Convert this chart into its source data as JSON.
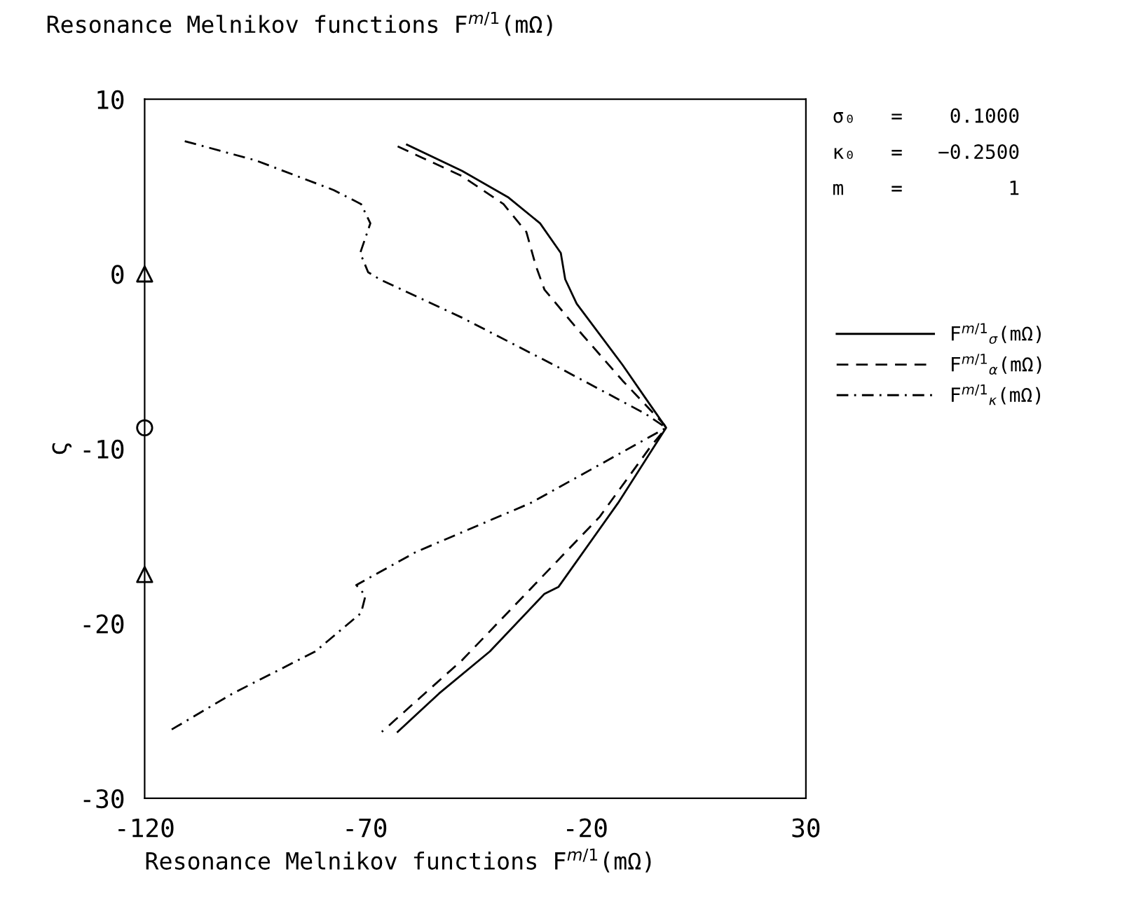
{
  "chart_data": {
    "type": "line",
    "title": "Resonance Melnikov functions F$^{m/1}$(mΩ)",
    "xlabel": "Resonance Melnikov functions F$^{m/1}$(mΩ)",
    "ylabel": "ς",
    "xlim": [
      -120,
      30
    ],
    "xticks": [
      -120,
      -70,
      -20,
      30
    ],
    "ylim": [
      -30,
      10
    ],
    "yticks": [
      -30,
      -20,
      -10,
      0,
      10
    ],
    "grid": false,
    "legend": "right",
    "annotations": [
      "σ₀   =    0.1000",
      "κ₀   =   −0.2500",
      "m    =         1"
    ],
    "series": [
      {
        "name": "F$^{m/1}$$_{σ}$(mΩ)",
        "color": "#000000",
        "line_style": "solid",
        "x": [
          -60.5,
          -48.0,
          -37.6,
          -30.3,
          -25.6,
          -24.6,
          -22.0,
          -11.6,
          -6.4,
          -1.7,
          -12.6,
          -26.1,
          -29.3,
          -41.7,
          -53.2,
          -62.6
        ],
        "values": [
          7.4,
          5.9,
          4.4,
          2.9,
          1.2,
          -0.3,
          -1.7,
          -5.2,
          -7.1,
          -8.8,
          -13.1,
          -17.9,
          -18.3,
          -21.6,
          -24.0,
          -26.2
        ]
      },
      {
        "name": "F$^{m/1}$$_{α}$(mΩ)",
        "color": "#000000",
        "line_style": "dashed",
        "x": [
          -62.6,
          -48.0,
          -38.6,
          -33.4,
          -31.3,
          -29.3,
          -22.0,
          -11.6,
          -2.2,
          -1.7,
          -5.3,
          -16.8,
          -32.4,
          -48.0,
          -66.2
        ],
        "values": [
          7.3,
          5.6,
          4.0,
          2.4,
          0.5,
          -0.9,
          -3.1,
          -6.1,
          -8.6,
          -8.8,
          -9.9,
          -13.9,
          -18.0,
          -22.1,
          -26.2
        ]
      },
      {
        "name": "F$^{m/1}$$_{κ}$(mΩ)",
        "color": "#000000",
        "line_style": "dashdot",
        "x": [
          -110.9,
          -94.8,
          -77.1,
          -70.9,
          -68.8,
          -71.1,
          -69.3,
          -66.7,
          -48.0,
          -27.2,
          -6.4,
          -1.7,
          -32.4,
          -58.4,
          -72.0,
          -69.9,
          -70.9,
          -81.3,
          -100.0,
          -114.1
        ],
        "values": [
          7.6,
          6.5,
          4.8,
          4.0,
          2.9,
          1.2,
          0.1,
          -0.3,
          -2.5,
          -5.2,
          -8.0,
          -8.8,
          -13.1,
          -15.9,
          -17.8,
          -18.4,
          -19.4,
          -21.6,
          -24.0,
          -26.1
        ]
      },
      {
        "type": "scatter",
        "marker": "triangle",
        "color": "#000000",
        "x": [
          -120,
          -120
        ],
        "values": [
          0,
          -17.2
        ]
      },
      {
        "type": "scatter",
        "marker": "circle",
        "color": "#000000",
        "x": [
          -120
        ],
        "values": [
          -8.8
        ]
      }
    ]
  }
}
